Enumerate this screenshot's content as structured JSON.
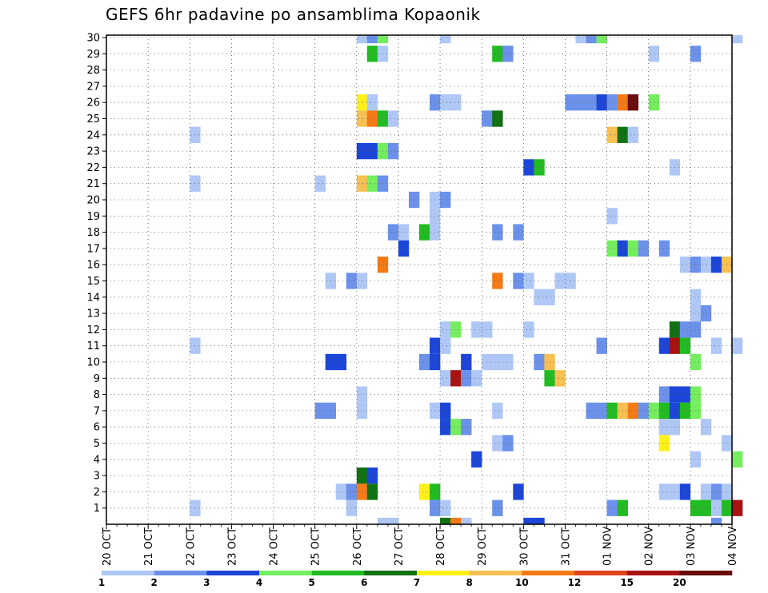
{
  "chart_data": {
    "type": "heatmap",
    "title": "GEFS 6hr padavine po ansamblima Kopaonik",
    "xlabel": "",
    "ylabel": "",
    "x_tick_labels": [
      "20 OCT",
      "21 OCT",
      "22 OCT",
      "23 OCT",
      "24 OCT",
      "25 OCT",
      "26 OCT",
      "27 OCT",
      "28 OCT",
      "29 OCT",
      "30 OCT",
      "31 OCT",
      "01 NOV",
      "02 NOV",
      "03 NOV",
      "04 NOV"
    ],
    "y_tick_labels": [
      "1",
      "2",
      "3",
      "4",
      "5",
      "6",
      "7",
      "8",
      "9",
      "10",
      "11",
      "12",
      "13",
      "14",
      "15",
      "16",
      "17",
      "18",
      "19",
      "20",
      "21",
      "22",
      "23",
      "24",
      "25",
      "26",
      "27",
      "28",
      "29",
      "30"
    ],
    "time_steps_per_day": 4,
    "n_members": 30,
    "grid": true,
    "colorbar": {
      "position": "bottom",
      "levels": [
        "1",
        "2",
        "3",
        "4",
        "5",
        "6",
        "7",
        "8",
        "10",
        "12",
        "15",
        "20"
      ],
      "colors": [
        "#aec7f5",
        "#6b91ea",
        "#1c46d8",
        "#74ee5e",
        "#22bb22",
        "#127112",
        "#fff01a",
        "#f7c052",
        "#f47a16",
        "#de4419",
        "#aa1212",
        "#6a0c0c"
      ]
    },
    "cells_note": "each cell: [member, time_step_index_from_20_OCT_00z, category_index_0_to_11]",
    "cells": [
      [
        30,
        24,
        0
      ],
      [
        30,
        25,
        1
      ],
      [
        30,
        26,
        3
      ],
      [
        30,
        32,
        0
      ],
      [
        30,
        45,
        0
      ],
      [
        30,
        46,
        1
      ],
      [
        30,
        47,
        3
      ],
      [
        30,
        60,
        0
      ],
      [
        29,
        25,
        4
      ],
      [
        29,
        26,
        0
      ],
      [
        29,
        37,
        4
      ],
      [
        29,
        38,
        1
      ],
      [
        29,
        52,
        0
      ],
      [
        29,
        56,
        1
      ],
      [
        26,
        24,
        6
      ],
      [
        26,
        25,
        0
      ],
      [
        26,
        31,
        1
      ],
      [
        26,
        32,
        0
      ],
      [
        26,
        33,
        0
      ],
      [
        26,
        44,
        1
      ],
      [
        26,
        45,
        1
      ],
      [
        26,
        46,
        1
      ],
      [
        26,
        47,
        2
      ],
      [
        26,
        48,
        1
      ],
      [
        26,
        49,
        8
      ],
      [
        26,
        50,
        11
      ],
      [
        26,
        52,
        3
      ],
      [
        25,
        24,
        7
      ],
      [
        25,
        25,
        8
      ],
      [
        25,
        26,
        4
      ],
      [
        25,
        27,
        0
      ],
      [
        25,
        36,
        1
      ],
      [
        25,
        37,
        5
      ],
      [
        24,
        8,
        0
      ],
      [
        24,
        48,
        7
      ],
      [
        24,
        49,
        5
      ],
      [
        24,
        50,
        0
      ],
      [
        23,
        24,
        2
      ],
      [
        23,
        25,
        2
      ],
      [
        23,
        26,
        3
      ],
      [
        23,
        27,
        1
      ],
      [
        22,
        40,
        2
      ],
      [
        22,
        41,
        4
      ],
      [
        22,
        54,
        0
      ],
      [
        21,
        8,
        0
      ],
      [
        21,
        20,
        0
      ],
      [
        21,
        24,
        7
      ],
      [
        21,
        25,
        3
      ],
      [
        21,
        26,
        1
      ],
      [
        20,
        29,
        1
      ],
      [
        20,
        31,
        0
      ],
      [
        20,
        32,
        1
      ],
      [
        19,
        31,
        0
      ],
      [
        19,
        48,
        0
      ],
      [
        18,
        27,
        1
      ],
      [
        18,
        28,
        0
      ],
      [
        18,
        30,
        4
      ],
      [
        18,
        31,
        0
      ],
      [
        18,
        37,
        1
      ],
      [
        18,
        39,
        1
      ],
      [
        17,
        28,
        2
      ],
      [
        17,
        48,
        3
      ],
      [
        17,
        49,
        2
      ],
      [
        17,
        50,
        3
      ],
      [
        17,
        51,
        1
      ],
      [
        17,
        53,
        1
      ],
      [
        16,
        26,
        8
      ],
      [
        16,
        55,
        0
      ],
      [
        16,
        56,
        1
      ],
      [
        16,
        57,
        0
      ],
      [
        16,
        58,
        2
      ],
      [
        16,
        59,
        7
      ],
      [
        15,
        21,
        0
      ],
      [
        15,
        23,
        1
      ],
      [
        15,
        24,
        0
      ],
      [
        15,
        37,
        8
      ],
      [
        15,
        39,
        1
      ],
      [
        15,
        40,
        0
      ],
      [
        15,
        43,
        0
      ],
      [
        15,
        44,
        0
      ],
      [
        14,
        41,
        0
      ],
      [
        14,
        42,
        0
      ],
      [
        14,
        56,
        0
      ],
      [
        13,
        56,
        0
      ],
      [
        13,
        57,
        1
      ],
      [
        12,
        32,
        0
      ],
      [
        12,
        33,
        3
      ],
      [
        12,
        35,
        0
      ],
      [
        12,
        36,
        0
      ],
      [
        12,
        40,
        0
      ],
      [
        12,
        54,
        5
      ],
      [
        12,
        55,
        1
      ],
      [
        12,
        56,
        1
      ],
      [
        11,
        8,
        0
      ],
      [
        11,
        31,
        2
      ],
      [
        11,
        32,
        0
      ],
      [
        11,
        47,
        1
      ],
      [
        11,
        53,
        2
      ],
      [
        11,
        54,
        10
      ],
      [
        11,
        55,
        4
      ],
      [
        11,
        58,
        0
      ],
      [
        11,
        60,
        0
      ],
      [
        10,
        21,
        2
      ],
      [
        10,
        22,
        2
      ],
      [
        10,
        30,
        1
      ],
      [
        10,
        31,
        2
      ],
      [
        10,
        34,
        2
      ],
      [
        10,
        36,
        0
      ],
      [
        10,
        37,
        0
      ],
      [
        10,
        38,
        0
      ],
      [
        10,
        41,
        1
      ],
      [
        10,
        42,
        7
      ],
      [
        10,
        56,
        3
      ],
      [
        9,
        32,
        0
      ],
      [
        9,
        33,
        10
      ],
      [
        9,
        34,
        1
      ],
      [
        9,
        35,
        0
      ],
      [
        9,
        42,
        4
      ],
      [
        9,
        43,
        7
      ],
      [
        8,
        24,
        0
      ],
      [
        8,
        53,
        1
      ],
      [
        8,
        54,
        2
      ],
      [
        8,
        55,
        2
      ],
      [
        8,
        56,
        3
      ],
      [
        7,
        20,
        1
      ],
      [
        7,
        21,
        1
      ],
      [
        7,
        24,
        0
      ],
      [
        7,
        31,
        0
      ],
      [
        7,
        32,
        2
      ],
      [
        7,
        37,
        0
      ],
      [
        7,
        46,
        1
      ],
      [
        7,
        47,
        1
      ],
      [
        7,
        48,
        4
      ],
      [
        7,
        49,
        7
      ],
      [
        7,
        50,
        8
      ],
      [
        7,
        51,
        1
      ],
      [
        7,
        52,
        3
      ],
      [
        7,
        53,
        4
      ],
      [
        7,
        54,
        2
      ],
      [
        7,
        55,
        4
      ],
      [
        7,
        56,
        3
      ],
      [
        6,
        32,
        2
      ],
      [
        6,
        33,
        3
      ],
      [
        6,
        34,
        1
      ],
      [
        6,
        53,
        0
      ],
      [
        6,
        54,
        0
      ],
      [
        6,
        57,
        0
      ],
      [
        5,
        37,
        0
      ],
      [
        5,
        38,
        1
      ],
      [
        5,
        53,
        6
      ],
      [
        5,
        59,
        0
      ],
      [
        4,
        35,
        2
      ],
      [
        4,
        56,
        0
      ],
      [
        4,
        60,
        3
      ],
      [
        3,
        24,
        5
      ],
      [
        3,
        25,
        2
      ],
      [
        2,
        22,
        0
      ],
      [
        2,
        23,
        1
      ],
      [
        2,
        24,
        8
      ],
      [
        2,
        25,
        5
      ],
      [
        2,
        30,
        6
      ],
      [
        2,
        31,
        4
      ],
      [
        2,
        39,
        2
      ],
      [
        2,
        53,
        0
      ],
      [
        2,
        54,
        0
      ],
      [
        2,
        55,
        2
      ],
      [
        2,
        57,
        0
      ],
      [
        2,
        58,
        1
      ],
      [
        2,
        59,
        0
      ],
      [
        1,
        8,
        0
      ],
      [
        1,
        23,
        0
      ],
      [
        1,
        31,
        1
      ],
      [
        1,
        32,
        0
      ],
      [
        1,
        37,
        1
      ],
      [
        1,
        48,
        1
      ],
      [
        1,
        49,
        4
      ],
      [
        1,
        56,
        4
      ],
      [
        1,
        57,
        4
      ],
      [
        1,
        58,
        0
      ],
      [
        1,
        59,
        4
      ],
      [
        1,
        60,
        10
      ],
      [
        0,
        26,
        0
      ],
      [
        0,
        27,
        0
      ],
      [
        0,
        32,
        5
      ],
      [
        0,
        33,
        8
      ],
      [
        0,
        34,
        0
      ],
      [
        0,
        40,
        2
      ],
      [
        0,
        41,
        2
      ],
      [
        0,
        58,
        1
      ]
    ]
  }
}
